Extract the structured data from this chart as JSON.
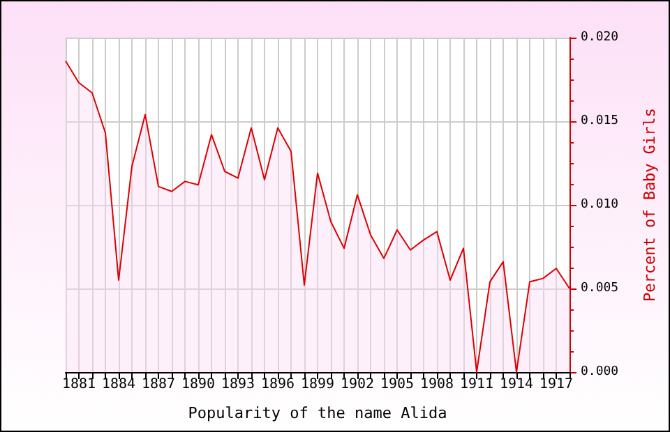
{
  "chart_data": {
    "type": "area",
    "xlabel": "Popularity of the name Alida",
    "ylabel": "Percent of Baby Girls",
    "x": [
      1880,
      1881,
      1882,
      1883,
      1884,
      1885,
      1886,
      1887,
      1888,
      1889,
      1890,
      1891,
      1892,
      1893,
      1894,
      1895,
      1896,
      1897,
      1898,
      1899,
      1900,
      1901,
      1902,
      1903,
      1904,
      1905,
      1906,
      1907,
      1908,
      1909,
      1910,
      1911,
      1912,
      1913,
      1914,
      1915,
      1916,
      1917,
      1918
    ],
    "series": [
      {
        "color": "#dd0000",
        "values": [
          0.0186,
          0.0173,
          0.0167,
          0.0143,
          0.0055,
          0.0123,
          0.0154,
          0.0111,
          0.0108,
          0.0114,
          0.0112,
          0.0142,
          0.012,
          0.0116,
          0.0146,
          0.0115,
          0.0146,
          0.0132,
          0.0052,
          0.0119,
          0.009,
          0.0074,
          0.0106,
          0.0082,
          0.0068,
          0.0085,
          0.0073,
          0.0079,
          0.0084,
          0.0055,
          0.0074,
          0.0,
          0.0054,
          0.0066,
          0.0,
          0.0054,
          0.0056,
          0.0062,
          0.005
        ]
      }
    ],
    "xlim": [
      1880,
      1918
    ],
    "xticks": [
      {
        "value": 1880,
        "label": null
      },
      1881,
      {
        "value": 1882,
        "label": null
      },
      {
        "value": 1883,
        "label": null
      },
      1884,
      {
        "value": 1885,
        "label": null
      },
      {
        "value": 1886,
        "label": null
      },
      1887,
      {
        "value": 1888,
        "label": null
      },
      {
        "value": 1889,
        "label": null
      },
      1890,
      {
        "value": 1891,
        "label": null
      },
      {
        "value": 1892,
        "label": null
      },
      1893,
      {
        "value": 1894,
        "label": null
      },
      {
        "value": 1895,
        "label": null
      },
      1896,
      {
        "value": 1897,
        "label": null
      },
      {
        "value": 1898,
        "label": null
      },
      1899,
      {
        "value": 1900,
        "label": null
      },
      {
        "value": 1901,
        "label": null
      },
      1902,
      {
        "value": 1903,
        "label": null
      },
      {
        "value": 1904,
        "label": null
      },
      1905,
      {
        "value": 1906,
        "label": null
      },
      {
        "value": 1907,
        "label": null
      },
      1908,
      {
        "value": 1909,
        "label": null
      },
      {
        "value": 1910,
        "label": null
      },
      1911,
      {
        "value": 1912,
        "label": null
      },
      {
        "value": 1913,
        "label": null
      },
      1914,
      {
        "value": 1915,
        "label": null
      },
      {
        "value": 1916,
        "label": null
      },
      1917,
      {
        "value": 1918,
        "label": null
      }
    ],
    "ylim": [
      0,
      0.02
    ],
    "yticks": [
      {
        "value": 0,
        "label": "0.000"
      },
      {
        "value": 0.005,
        "label": "0.005"
      },
      {
        "value": 0.01,
        "label": "0.010"
      },
      {
        "value": 0.015,
        "label": "0.015"
      },
      {
        "value": 0.02,
        "label": "0.020"
      }
    ],
    "grid": true,
    "marker": "none",
    "line_style": "solid"
  }
}
